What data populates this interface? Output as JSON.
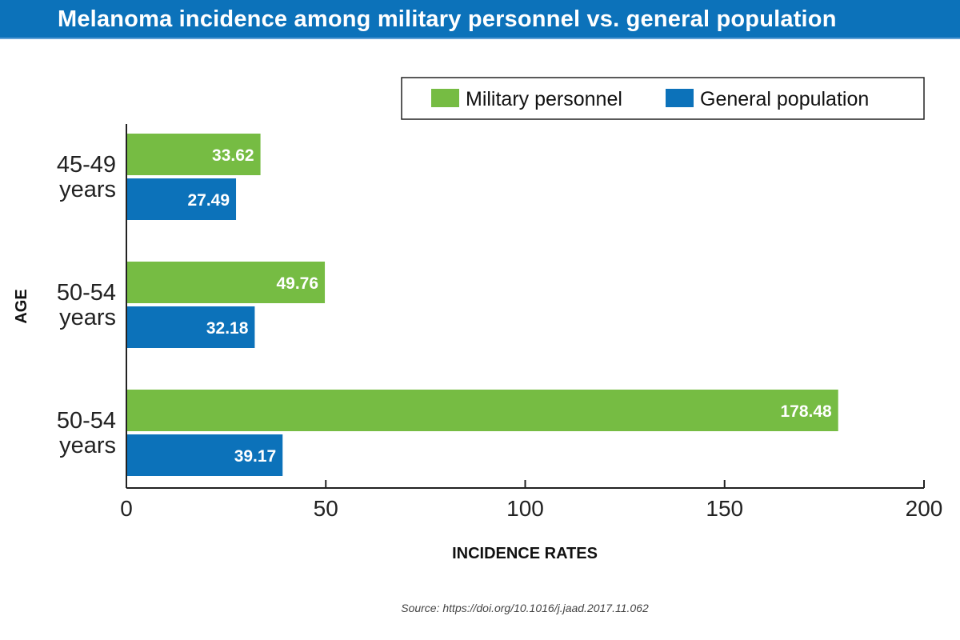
{
  "chart_data": {
    "type": "bar",
    "orientation": "horizontal",
    "title": "Melanoma incidence among military personnel vs. general population",
    "categories": [
      "45-49 years",
      "50-54 years",
      "50-54 years"
    ],
    "series": [
      {
        "name": "Military personnel",
        "values": [
          33.62,
          49.76,
          178.48
        ],
        "color": "#76bc43"
      },
      {
        "name": "General population",
        "values": [
          27.49,
          32.18,
          39.17
        ],
        "color": "#0c72ba"
      }
    ],
    "xlabel": "INCIDENCE RATES",
    "ylabel": "AGE",
    "xlim": [
      0,
      200
    ],
    "xticks": [
      "0",
      "50",
      "100",
      "150",
      "200"
    ],
    "grid": false,
    "legend_position": "top-right",
    "source": "Source: https://doi.org/10.1016/j.jaad.2017.11.062"
  }
}
